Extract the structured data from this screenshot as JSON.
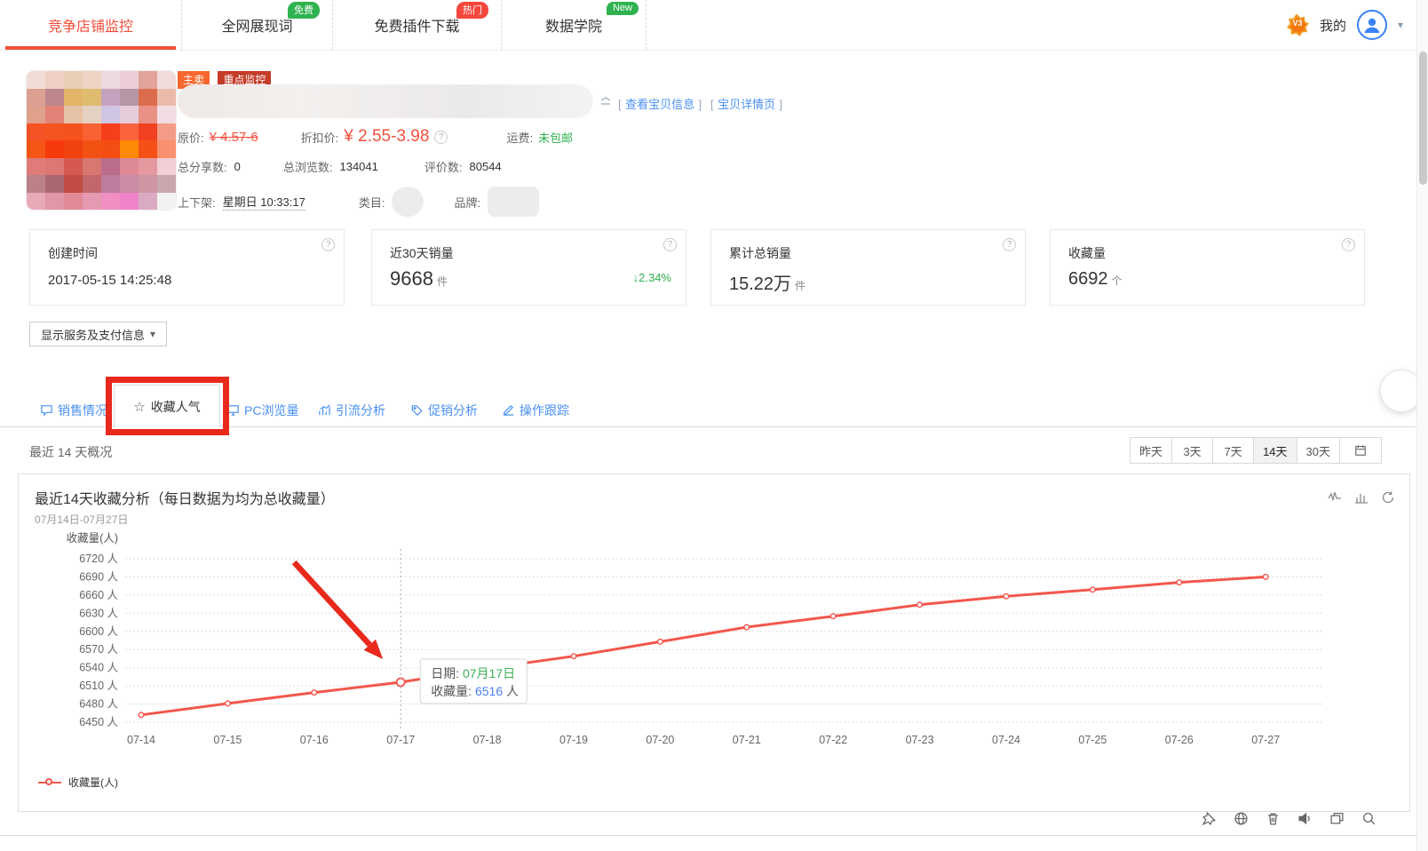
{
  "nav": {
    "tabs": [
      {
        "label": "竞争店铺监控",
        "badge": "",
        "active": true
      },
      {
        "label": "全网展现词",
        "badge": "免费",
        "badge_type": "green"
      },
      {
        "label": "免费插件下载",
        "badge": "热门",
        "badge_type": "red"
      },
      {
        "label": "数据学院",
        "badge": "New",
        "badge_type": "green"
      }
    ],
    "vip_label": "V3",
    "my_label": "我的"
  },
  "product": {
    "badges": [
      {
        "label": "主卖"
      },
      {
        "label": "重点监控"
      }
    ],
    "link_view_info": "查看宝贝信息",
    "link_detail_page": "宝贝详情页",
    "original_price_label": "原价:",
    "original_price": "¥ 4.57-6",
    "discount_price_label": "折扣价:",
    "discount_price": "¥ 2.55-3.98",
    "shipping_label": "运费:",
    "shipping_value": "未包邮",
    "share_label": "总分享数:",
    "share_value": "0",
    "views_label": "总浏览数:",
    "views_value": "134041",
    "reviews_label": "评价数:",
    "reviews_value": "80544",
    "shelf_label": "上下架:",
    "shelf_value": "星期日 10:33:17",
    "category_label": "类目:",
    "brand_label": "品牌:",
    "image_mosaic": [
      [
        "#f0ded6",
        "#eecfc6",
        "#e9ceb6",
        "#ecd3c3",
        "#ecd9de",
        "#eccfd6",
        "#e2a39c",
        "#f2dcda"
      ],
      [
        "#dba092",
        "#bd868b",
        "#e2b569",
        "#dfbc70",
        "#c5a2be",
        "#b596a6",
        "#db6d4c",
        "#eabbaa"
      ],
      [
        "#dfa18c",
        "#e28377",
        "#e6c2a6",
        "#e5d1c2",
        "#cfc5e2",
        "#e5cdda",
        "#ea9186",
        "#f2dee2"
      ],
      [
        "#f65225",
        "#f55320",
        "#f5521e",
        "#f96232",
        "#f53f1a",
        "#f9623c",
        "#f14122",
        "#f49c86"
      ],
      [
        "#f65516",
        "#f5390a",
        "#f1420e",
        "#f35112",
        "#f44e12",
        "#fc8a06",
        "#f55116",
        "#fa916e"
      ],
      [
        "#df7c7a",
        "#dd7773",
        "#d6594f",
        "#d87670",
        "#ba6d8a",
        "#de8996",
        "#e5989e",
        "#f2ced6"
      ],
      [
        "#bb8187",
        "#aa6871",
        "#c24c46",
        "#c2676c",
        "#bc7c9e",
        "#ca8ba6",
        "#ce95a2",
        "#cba6ae"
      ],
      [
        "#e8aab6",
        "#e296a6",
        "#e28a96",
        "#e69ab2",
        "#f18ec2",
        "#ee83ca",
        "#daaac2",
        "#f2f2f2"
      ]
    ]
  },
  "cards": [
    {
      "title": "创建时间",
      "value": "2017-05-15 14:25:48",
      "unit": "",
      "delta": ""
    },
    {
      "title": "近30天销量",
      "value": "9668",
      "unit": "件",
      "delta": "↓2.34%"
    },
    {
      "title": "累计总销量",
      "value": "15.22万",
      "unit": "件",
      "delta": ""
    },
    {
      "title": "收藏量",
      "value": "6692",
      "unit": "个",
      "delta": ""
    }
  ],
  "service_toggle_label": "显示服务及支付信息",
  "detail_tabs": [
    {
      "label": "销售情况"
    },
    {
      "label": "收藏人气",
      "active": true
    },
    {
      "label": "PC浏览量"
    },
    {
      "label": "引流分析"
    },
    {
      "label": "促销分析"
    },
    {
      "label": "操作跟踪"
    }
  ],
  "overview_label": "最近 14 天概况",
  "range_buttons": [
    {
      "label": "昨天"
    },
    {
      "label": "3天"
    },
    {
      "label": "7天"
    },
    {
      "label": "14天",
      "active": true
    },
    {
      "label": "30天"
    }
  ],
  "chart_data": {
    "type": "line",
    "title": "最近14天收藏分析（每日数据为均为总收藏量）",
    "subtitle": "07月14日-07月27日",
    "y_axis_title": "收藏量(人)",
    "x": [
      "07-14",
      "07-15",
      "07-16",
      "07-17",
      "07-18",
      "07-19",
      "07-20",
      "07-21",
      "07-22",
      "07-23",
      "07-24",
      "07-25",
      "07-26",
      "07-27"
    ],
    "series": [
      {
        "name": "收藏量(人)",
        "color": "#f2574c",
        "values": [
          6462,
          6481,
          6499,
          6516,
          6539,
          6559,
          6583,
          6607,
          6625,
          6644,
          6658,
          6669,
          6681,
          6690
        ]
      }
    ],
    "ylim": [
      6450,
      6720
    ],
    "y_ticks": [
      6720,
      6690,
      6660,
      6630,
      6600,
      6570,
      6540,
      6510,
      6480,
      6450
    ],
    "y_tick_unit": "人",
    "grid": "horizontal-dotted",
    "legend_position": "bottom-left",
    "legend": [
      "收藏量(人)"
    ],
    "tooltip": {
      "index": 3,
      "date_label": "日期:",
      "date_value": "07月17日",
      "value_label": "收藏量:",
      "value": "6516",
      "unit": "人"
    }
  },
  "ui": {
    "caret": "▾",
    "help_glyph": "?",
    "star_glyph": "☆",
    "bracket_open": "[",
    "bracket_close": "]",
    "colors": {
      "accent_red": "#f0503c",
      "line_red": "#f2574c",
      "annotation_red": "#e8291c",
      "link_blue": "#4a90f2",
      "green": "#2eb14f",
      "tooltip_green": "#3cb157",
      "tooltip_blue": "#4a7df5",
      "badge_green": "#2fb350",
      "badge_red": "#f3473c"
    }
  }
}
